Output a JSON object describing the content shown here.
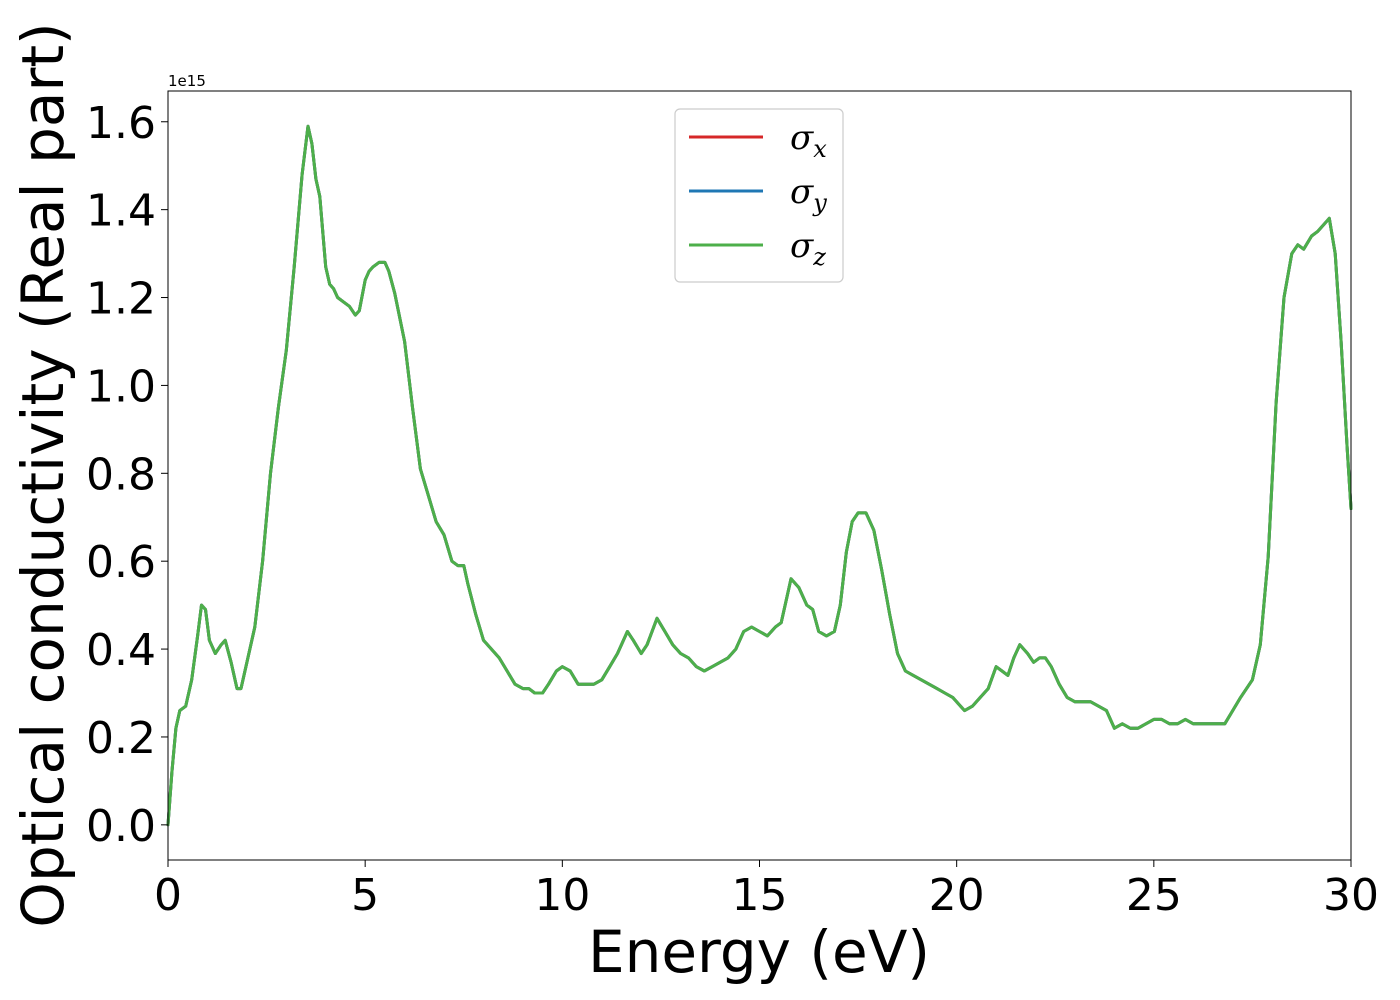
{
  "chart_data": {
    "type": "line",
    "xlabel": "Energy (eV)",
    "ylabel": "Optical conductivity (Real part)",
    "y_offset_text": "1e15",
    "xlim": [
      0,
      30
    ],
    "ylim": [
      -0.08,
      1.67
    ],
    "x_ticks": [
      0,
      5,
      10,
      15,
      20,
      25,
      30
    ],
    "x_tick_labels": [
      "0",
      "5",
      "10",
      "15",
      "20",
      "25",
      "30"
    ],
    "y_ticks": [
      0.0,
      0.2,
      0.4,
      0.6,
      0.8,
      1.0,
      1.2,
      1.4,
      1.6
    ],
    "y_tick_labels": [
      "0.0",
      "0.2",
      "0.4",
      "0.6",
      "0.8",
      "1.0",
      "1.2",
      "1.4",
      "1.6"
    ],
    "grid": false,
    "legend": {
      "position": "upper-center",
      "entries": [
        {
          "label": "σx",
          "base": "σ",
          "sub": "x",
          "color": "#d62728"
        },
        {
          "label": "σy",
          "base": "σ",
          "sub": "y",
          "color": "#1f77b4"
        },
        {
          "label": "σz",
          "base": "σ",
          "sub": "z",
          "color": "#4daf4a"
        }
      ]
    },
    "x": [
      0,
      0.1,
      0.2,
      0.3,
      0.45,
      0.6,
      0.75,
      0.85,
      0.95,
      1.05,
      1.2,
      1.35,
      1.45,
      1.6,
      1.75,
      1.85,
      2.0,
      2.2,
      2.4,
      2.6,
      2.8,
      3.0,
      3.2,
      3.4,
      3.55,
      3.65,
      3.75,
      3.85,
      4.0,
      4.1,
      4.2,
      4.3,
      4.45,
      4.6,
      4.75,
      4.85,
      5.0,
      5.1,
      5.2,
      5.35,
      5.5,
      5.6,
      5.75,
      6.0,
      6.2,
      6.4,
      6.6,
      6.8,
      7.0,
      7.2,
      7.35,
      7.5,
      7.6,
      7.8,
      8.0,
      8.2,
      8.4,
      8.6,
      8.8,
      9.0,
      9.15,
      9.3,
      9.5,
      9.65,
      9.85,
      10.0,
      10.2,
      10.4,
      10.6,
      10.8,
      11.0,
      11.2,
      11.4,
      11.65,
      11.8,
      12.0,
      12.15,
      12.4,
      12.6,
      12.8,
      13.0,
      13.2,
      13.4,
      13.6,
      13.8,
      14.0,
      14.2,
      14.4,
      14.6,
      14.8,
      15.0,
      15.2,
      15.4,
      15.55,
      15.7,
      15.8,
      16.0,
      16.2,
      16.35,
      16.5,
      16.7,
      16.9,
      17.05,
      17.2,
      17.35,
      17.5,
      17.7,
      17.9,
      18.1,
      18.3,
      18.5,
      18.7,
      18.9,
      19.1,
      19.3,
      19.5,
      19.7,
      19.9,
      20.1,
      20.2,
      20.4,
      20.6,
      20.8,
      21.0,
      21.15,
      21.3,
      21.45,
      21.6,
      21.8,
      21.95,
      22.1,
      22.25,
      22.4,
      22.6,
      22.8,
      23.0,
      23.2,
      23.4,
      23.6,
      23.8,
      24.0,
      24.2,
      24.4,
      24.6,
      24.8,
      25.0,
      25.2,
      25.4,
      25.6,
      25.8,
      26.0,
      26.2,
      26.4,
      26.6,
      26.8,
      27.0,
      27.2,
      27.5,
      27.7,
      27.9,
      28.1,
      28.3,
      28.5,
      28.65,
      28.8,
      29.0,
      29.15,
      29.25,
      29.35,
      29.45,
      29.6,
      29.75,
      29.9,
      30.0
    ],
    "series": [
      {
        "name": "σx",
        "color": "#d62728",
        "values": [
          0.0,
          0.12,
          0.22,
          0.26,
          0.27,
          0.33,
          0.43,
          0.5,
          0.49,
          0.42,
          0.39,
          0.41,
          0.42,
          0.37,
          0.31,
          0.31,
          0.37,
          0.45,
          0.6,
          0.8,
          0.95,
          1.08,
          1.27,
          1.48,
          1.59,
          1.55,
          1.47,
          1.43,
          1.27,
          1.23,
          1.22,
          1.2,
          1.19,
          1.18,
          1.16,
          1.17,
          1.24,
          1.26,
          1.27,
          1.28,
          1.28,
          1.26,
          1.21,
          1.1,
          0.95,
          0.81,
          0.75,
          0.69,
          0.66,
          0.6,
          0.59,
          0.59,
          0.55,
          0.48,
          0.42,
          0.4,
          0.38,
          0.35,
          0.32,
          0.31,
          0.31,
          0.3,
          0.3,
          0.32,
          0.35,
          0.36,
          0.35,
          0.32,
          0.32,
          0.32,
          0.33,
          0.36,
          0.39,
          0.44,
          0.42,
          0.39,
          0.41,
          0.47,
          0.44,
          0.41,
          0.39,
          0.38,
          0.36,
          0.35,
          0.36,
          0.37,
          0.38,
          0.4,
          0.44,
          0.45,
          0.44,
          0.43,
          0.45,
          0.46,
          0.52,
          0.56,
          0.54,
          0.5,
          0.49,
          0.44,
          0.43,
          0.44,
          0.5,
          0.62,
          0.69,
          0.71,
          0.71,
          0.67,
          0.58,
          0.48,
          0.39,
          0.35,
          0.34,
          0.33,
          0.32,
          0.31,
          0.3,
          0.29,
          0.27,
          0.26,
          0.27,
          0.29,
          0.31,
          0.36,
          0.35,
          0.34,
          0.38,
          0.41,
          0.39,
          0.37,
          0.38,
          0.38,
          0.36,
          0.32,
          0.29,
          0.28,
          0.28,
          0.28,
          0.27,
          0.26,
          0.22,
          0.23,
          0.22,
          0.22,
          0.23,
          0.24,
          0.24,
          0.23,
          0.23,
          0.24,
          0.23,
          0.23,
          0.23,
          0.23,
          0.23,
          0.26,
          0.29,
          0.33,
          0.41,
          0.61,
          0.96,
          1.2,
          1.3,
          1.32,
          1.31,
          1.34,
          1.35,
          1.36,
          1.37,
          1.38,
          1.3,
          1.1,
          0.86,
          0.72
        ]
      },
      {
        "name": "σy",
        "color": "#1f77b4",
        "values": [
          0.0,
          0.12,
          0.22,
          0.26,
          0.27,
          0.33,
          0.43,
          0.5,
          0.49,
          0.42,
          0.39,
          0.41,
          0.42,
          0.37,
          0.31,
          0.31,
          0.37,
          0.45,
          0.6,
          0.8,
          0.95,
          1.08,
          1.27,
          1.48,
          1.59,
          1.55,
          1.47,
          1.43,
          1.27,
          1.23,
          1.22,
          1.2,
          1.19,
          1.18,
          1.16,
          1.17,
          1.24,
          1.26,
          1.27,
          1.28,
          1.28,
          1.26,
          1.21,
          1.1,
          0.95,
          0.81,
          0.75,
          0.69,
          0.66,
          0.6,
          0.59,
          0.59,
          0.55,
          0.48,
          0.42,
          0.4,
          0.38,
          0.35,
          0.32,
          0.31,
          0.31,
          0.3,
          0.3,
          0.32,
          0.35,
          0.36,
          0.35,
          0.32,
          0.32,
          0.32,
          0.33,
          0.36,
          0.39,
          0.44,
          0.42,
          0.39,
          0.41,
          0.47,
          0.44,
          0.41,
          0.39,
          0.38,
          0.36,
          0.35,
          0.36,
          0.37,
          0.38,
          0.4,
          0.44,
          0.45,
          0.44,
          0.43,
          0.45,
          0.46,
          0.52,
          0.56,
          0.54,
          0.5,
          0.49,
          0.44,
          0.43,
          0.44,
          0.5,
          0.62,
          0.69,
          0.71,
          0.71,
          0.67,
          0.58,
          0.48,
          0.39,
          0.35,
          0.34,
          0.33,
          0.32,
          0.31,
          0.3,
          0.29,
          0.27,
          0.26,
          0.27,
          0.29,
          0.31,
          0.36,
          0.35,
          0.34,
          0.38,
          0.41,
          0.39,
          0.37,
          0.38,
          0.38,
          0.36,
          0.32,
          0.29,
          0.28,
          0.28,
          0.28,
          0.27,
          0.26,
          0.22,
          0.23,
          0.22,
          0.22,
          0.23,
          0.24,
          0.24,
          0.23,
          0.23,
          0.24,
          0.23,
          0.23,
          0.23,
          0.23,
          0.23,
          0.26,
          0.29,
          0.33,
          0.41,
          0.61,
          0.96,
          1.2,
          1.3,
          1.32,
          1.31,
          1.34,
          1.35,
          1.36,
          1.37,
          1.38,
          1.3,
          1.1,
          0.86,
          0.72
        ]
      },
      {
        "name": "σz",
        "color": "#4daf4a",
        "values": [
          0.0,
          0.12,
          0.22,
          0.26,
          0.27,
          0.33,
          0.43,
          0.5,
          0.49,
          0.42,
          0.39,
          0.41,
          0.42,
          0.37,
          0.31,
          0.31,
          0.37,
          0.45,
          0.6,
          0.8,
          0.95,
          1.08,
          1.27,
          1.48,
          1.59,
          1.55,
          1.47,
          1.43,
          1.27,
          1.23,
          1.22,
          1.2,
          1.19,
          1.18,
          1.16,
          1.17,
          1.24,
          1.26,
          1.27,
          1.28,
          1.28,
          1.26,
          1.21,
          1.1,
          0.95,
          0.81,
          0.75,
          0.69,
          0.66,
          0.6,
          0.59,
          0.59,
          0.55,
          0.48,
          0.42,
          0.4,
          0.38,
          0.35,
          0.32,
          0.31,
          0.31,
          0.3,
          0.3,
          0.32,
          0.35,
          0.36,
          0.35,
          0.32,
          0.32,
          0.32,
          0.33,
          0.36,
          0.39,
          0.44,
          0.42,
          0.39,
          0.41,
          0.47,
          0.44,
          0.41,
          0.39,
          0.38,
          0.36,
          0.35,
          0.36,
          0.37,
          0.38,
          0.4,
          0.44,
          0.45,
          0.44,
          0.43,
          0.45,
          0.46,
          0.52,
          0.56,
          0.54,
          0.5,
          0.49,
          0.44,
          0.43,
          0.44,
          0.5,
          0.62,
          0.69,
          0.71,
          0.71,
          0.67,
          0.58,
          0.48,
          0.39,
          0.35,
          0.34,
          0.33,
          0.32,
          0.31,
          0.3,
          0.29,
          0.27,
          0.26,
          0.27,
          0.29,
          0.31,
          0.36,
          0.35,
          0.34,
          0.38,
          0.41,
          0.39,
          0.37,
          0.38,
          0.38,
          0.36,
          0.32,
          0.29,
          0.28,
          0.28,
          0.28,
          0.27,
          0.26,
          0.22,
          0.23,
          0.22,
          0.22,
          0.23,
          0.24,
          0.24,
          0.23,
          0.23,
          0.24,
          0.23,
          0.23,
          0.23,
          0.23,
          0.23,
          0.26,
          0.29,
          0.33,
          0.41,
          0.61,
          0.96,
          1.2,
          1.3,
          1.32,
          1.31,
          1.34,
          1.35,
          1.36,
          1.37,
          1.38,
          1.3,
          1.1,
          0.86,
          0.72
        ]
      }
    ]
  }
}
